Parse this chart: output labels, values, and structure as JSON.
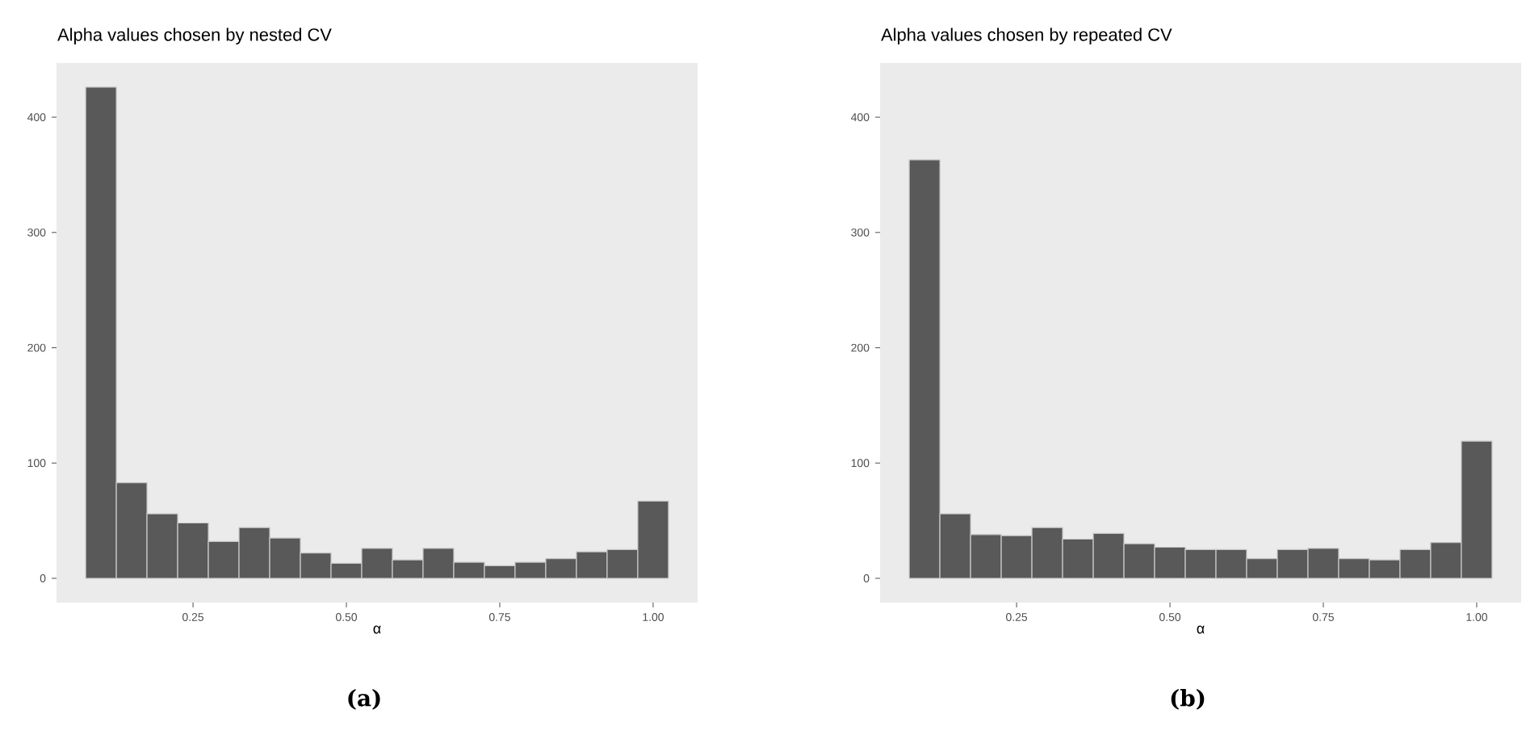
{
  "chart_data": [
    {
      "type": "histogram",
      "title": "Alpha values chosen by nested CV",
      "xlabel": "α",
      "annotations": [
        "(a)"
      ],
      "color": "#595959",
      "grid": false,
      "bins": [
        0.075,
        0.125,
        0.175,
        0.225,
        0.275,
        0.325,
        0.375,
        0.425,
        0.475,
        0.525,
        0.575,
        0.625,
        0.675,
        0.725,
        0.775,
        0.825,
        0.875,
        0.925,
        0.975,
        1.025
      ],
      "values": [
        426,
        83,
        56,
        48,
        32,
        44,
        35,
        22,
        13,
        26,
        16,
        26,
        14,
        11,
        14,
        17,
        23,
        25,
        67
      ],
      "xlim": [
        0.0275,
        1.0725
      ],
      "ylim": [
        -21,
        447
      ],
      "xticks": [
        {
          "value": 0.25,
          "label": "0.25"
        },
        {
          "value": 0.5,
          "label": "0.50"
        },
        {
          "value": 0.75,
          "label": "0.75"
        },
        {
          "value": 1.0,
          "label": "1.00"
        }
      ],
      "yticks": [
        0,
        100,
        200,
        300,
        400
      ]
    },
    {
      "type": "histogram",
      "title": "Alpha values chosen by repeated CV",
      "xlabel": "α",
      "annotations": [
        "(b)"
      ],
      "color": "#595959",
      "grid": false,
      "bins": [
        0.075,
        0.125,
        0.175,
        0.225,
        0.275,
        0.325,
        0.375,
        0.425,
        0.475,
        0.525,
        0.575,
        0.625,
        0.675,
        0.725,
        0.775,
        0.825,
        0.875,
        0.925,
        0.975,
        1.025
      ],
      "values": [
        363,
        56,
        38,
        37,
        44,
        34,
        39,
        30,
        27,
        25,
        25,
        17,
        25,
        26,
        17,
        16,
        25,
        31,
        119
      ],
      "xlim": [
        0.0275,
        1.0725
      ],
      "ylim": [
        -21,
        447
      ],
      "xticks": [
        {
          "value": 0.25,
          "label": "0.25"
        },
        {
          "value": 0.5,
          "label": "0.50"
        },
        {
          "value": 0.75,
          "label": "0.75"
        },
        {
          "value": 1.0,
          "label": "1.00"
        }
      ],
      "yticks": [
        0,
        100,
        200,
        300,
        400
      ]
    }
  ]
}
